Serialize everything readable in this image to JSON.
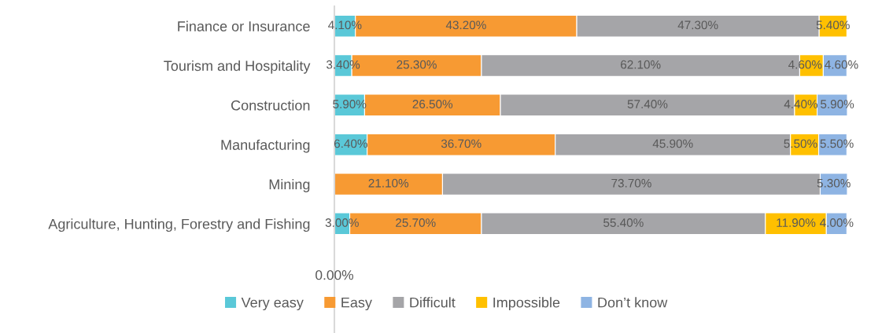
{
  "chart_data": {
    "type": "bar",
    "orientation": "horizontal",
    "stacked": true,
    "categories": [
      "Finance or Insurance",
      "Tourism and Hospitality",
      "Construction",
      "Manufacturing",
      "Mining",
      "Agriculture, Hunting, Forestry and Fishing"
    ],
    "annotations": [
      "0.00%"
    ],
    "grid": false,
    "legend": "bottom",
    "series": [
      {
        "name": "Very easy",
        "color": "#5ac8d8",
        "values": [
          4.1,
          3.4,
          5.9,
          6.4,
          null,
          3.0
        ],
        "value_labels": [
          "4.10%",
          "3.40%",
          "5.90%",
          "6.40%",
          null,
          "3.00%"
        ]
      },
      {
        "name": "Easy",
        "color": "#f79a33",
        "values": [
          43.2,
          25.3,
          26.5,
          36.7,
          21.1,
          25.7
        ],
        "value_labels": [
          "43.20%",
          "25.30%",
          "26.50%",
          "36.70%",
          "21.10%",
          "25.70%"
        ]
      },
      {
        "name": "Difficult",
        "color": "#a5a5a8",
        "values": [
          47.3,
          62.1,
          57.4,
          45.9,
          73.7,
          55.4
        ],
        "value_labels": [
          "47.30%",
          "62.10%",
          "57.40%",
          "45.90%",
          "73.70%",
          "55.40%"
        ]
      },
      {
        "name": "Impossible",
        "color": "#ffc000",
        "values": [
          5.4,
          4.6,
          4.4,
          5.5,
          null,
          11.9
        ],
        "value_labels": [
          "5.40%",
          "4.60%",
          "4.40%",
          "5.50%",
          null,
          "11.90%"
        ]
      },
      {
        "name": "Don’t know",
        "color": "#8eb4e3",
        "values": [
          null,
          4.6,
          5.9,
          5.5,
          5.3,
          4.0
        ],
        "value_labels": [
          null,
          "4.60%",
          "5.90%",
          "5.50%",
          "5.30%",
          "4.00%"
        ]
      }
    ]
  }
}
